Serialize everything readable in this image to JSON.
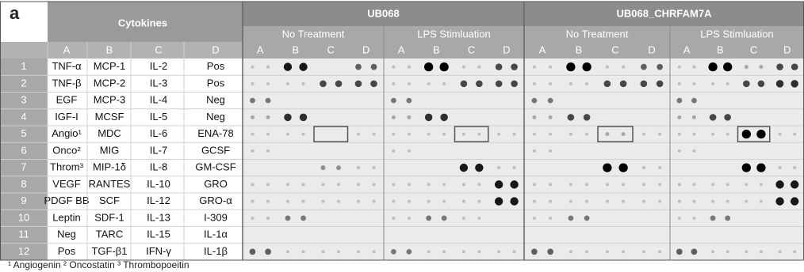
{
  "panel_label": "a",
  "table": {
    "header": "Cytokines",
    "columns": [
      "A",
      "B",
      "C",
      "D"
    ],
    "rows": [
      {
        "number": 1,
        "cells": [
          "TNF-α",
          "MCP-1",
          "IL-2",
          "Pos"
        ]
      },
      {
        "number": 2,
        "cells": [
          "TNF-β",
          "MCP-2",
          "IL-3",
          "Pos"
        ]
      },
      {
        "number": 3,
        "cells": [
          "EGF",
          "MCP-3",
          "IL-4",
          "Neg"
        ]
      },
      {
        "number": 4,
        "cells": [
          "IGF-I",
          "MCSF",
          "IL-5",
          "Neg"
        ]
      },
      {
        "number": 5,
        "cells": [
          "Angio¹",
          "MDC",
          "IL-6",
          "ENA-78"
        ]
      },
      {
        "number": 6,
        "cells": [
          "Onco²",
          "MIG",
          "IL-7",
          "GCSF"
        ]
      },
      {
        "number": 7,
        "cells": [
          "Throm³",
          "MIP-1δ",
          "IL-8",
          "GM-CSF"
        ]
      },
      {
        "number": 8,
        "cells": [
          "VEGF",
          "RANTES",
          "IL-10",
          "GRO"
        ]
      },
      {
        "number": 9,
        "cells": [
          "PDGF BB",
          "SCF",
          "IL-12",
          "GRO-α"
        ]
      },
      {
        "number": 10,
        "cells": [
          "Leptin",
          "SDF-1",
          "IL-13",
          "I-309"
        ]
      },
      {
        "number": 11,
        "cells": [
          "Neg",
          "TARC",
          "IL-15",
          "IL-1α"
        ]
      },
      {
        "number": 12,
        "cells": [
          "Pos",
          "TGF-β1",
          "IFN-γ",
          "IL-1β"
        ]
      }
    ]
  },
  "blots": [
    {
      "name": "UB068",
      "conditions": [
        "No Treatment",
        "LPS Stimluation"
      ]
    },
    {
      "name": "UB068_CHRFAM7A",
      "conditions": [
        "No Treatment",
        "LPS Stimluation"
      ]
    }
  ],
  "footnote": "¹ Angiogenin  ² Oncostatin  ³ Thrombopoeitin"
}
